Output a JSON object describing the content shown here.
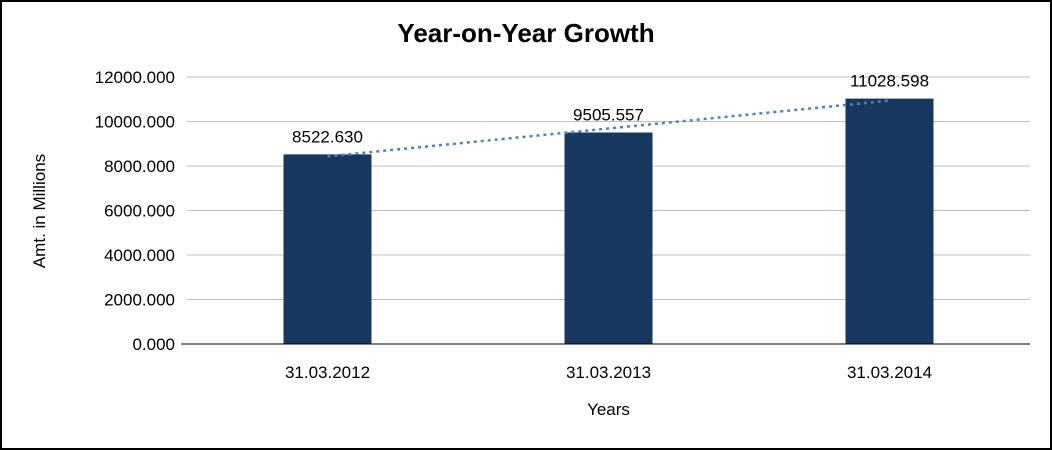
{
  "chart_data": {
    "type": "bar",
    "title": "Year-on-Year Growth",
    "xlabel": "Years",
    "ylabel": "Amt. in Millions",
    "categories": [
      "31.03.2012",
      "31.03.2013",
      "31.03.2014"
    ],
    "values": [
      8522.63,
      9505.557,
      11028.598
    ],
    "data_labels": [
      "8522.630",
      "9505.557",
      "11028.598"
    ],
    "ylim": [
      0,
      12000
    ],
    "ytick_step": 2000,
    "ytick_labels": [
      "0.000",
      "2000.000",
      "4000.000",
      "6000.000",
      "8000.000",
      "10000.000",
      "12000.000"
    ],
    "grid": true,
    "legend": "none",
    "trendline": true,
    "colors": {
      "bar": "#17375E",
      "trend_line": "#4F81BD",
      "gridline": "#BFBFBF",
      "axis": "#000000",
      "text": "#000000",
      "frame_border": "#000000",
      "background": "#FFFFFF"
    }
  }
}
